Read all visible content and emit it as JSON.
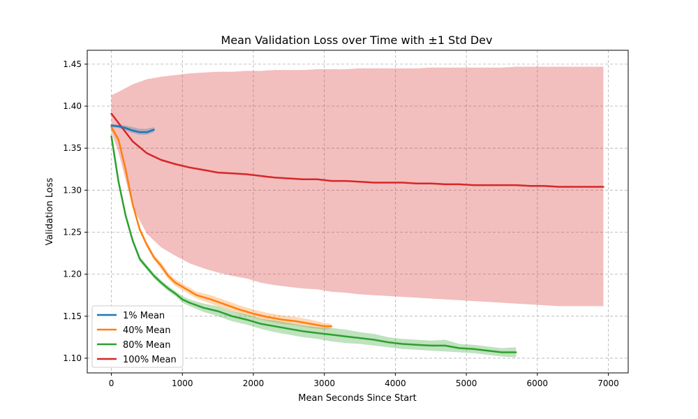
{
  "chart_data": {
    "type": "line",
    "title": "Mean Validation Loss over Time with ±1 Std Dev",
    "xlabel": "Mean Seconds Since Start",
    "ylabel": "Validation Loss",
    "xlim": [
      -340,
      7280
    ],
    "ylim": [
      1.0825,
      1.4665
    ],
    "xticks": [
      0,
      1000,
      2000,
      3000,
      4000,
      5000,
      6000,
      7000
    ],
    "yticks": [
      1.1,
      1.15,
      1.2,
      1.25,
      1.3,
      1.35,
      1.4,
      1.45
    ],
    "grid": true,
    "legend_position": "lower-left",
    "series": [
      {
        "name": "1% Mean",
        "color": "#1f77b4",
        "x": [
          0,
          100,
          200,
          300,
          400,
          500,
          600
        ],
        "y": [
          1.377,
          1.376,
          1.374,
          1.371,
          1.369,
          1.369,
          1.372
        ],
        "lower": [
          1.375,
          1.374,
          1.371,
          1.368,
          1.366,
          1.366,
          1.369
        ],
        "upper": [
          1.379,
          1.378,
          1.377,
          1.375,
          1.373,
          1.373,
          1.375
        ]
      },
      {
        "name": "40% Mean",
        "color": "#ff7f0e",
        "x": [
          0,
          100,
          200,
          300,
          400,
          500,
          600,
          700,
          800,
          900,
          1000,
          1100,
          1200,
          1400,
          1600,
          1800,
          2000,
          2200,
          2400,
          2600,
          2800,
          3000,
          3100
        ],
        "y": [
          1.375,
          1.36,
          1.325,
          1.283,
          1.253,
          1.235,
          1.22,
          1.21,
          1.198,
          1.19,
          1.185,
          1.18,
          1.175,
          1.17,
          1.164,
          1.158,
          1.153,
          1.149,
          1.146,
          1.144,
          1.141,
          1.138,
          1.138
        ],
        "lower": [
          1.372,
          1.357,
          1.322,
          1.28,
          1.25,
          1.232,
          1.217,
          1.206,
          1.194,
          1.186,
          1.181,
          1.176,
          1.171,
          1.165,
          1.159,
          1.153,
          1.148,
          1.144,
          1.141,
          1.139,
          1.136,
          1.134,
          1.135
        ],
        "upper": [
          1.378,
          1.363,
          1.328,
          1.286,
          1.256,
          1.238,
          1.223,
          1.214,
          1.202,
          1.194,
          1.189,
          1.184,
          1.179,
          1.175,
          1.169,
          1.163,
          1.158,
          1.154,
          1.151,
          1.149,
          1.146,
          1.142,
          1.141
        ]
      },
      {
        "name": "80% Mean",
        "color": "#2ca02c",
        "x": [
          0,
          100,
          200,
          300,
          400,
          500,
          600,
          700,
          800,
          900,
          1000,
          1100,
          1300,
          1500,
          1700,
          1900,
          2100,
          2300,
          2500,
          2700,
          2900,
          3100,
          3300,
          3500,
          3700,
          3900,
          4100,
          4300,
          4500,
          4700,
          4900,
          5100,
          5300,
          5500,
          5700
        ],
        "y": [
          1.364,
          1.31,
          1.27,
          1.24,
          1.218,
          1.208,
          1.198,
          1.19,
          1.183,
          1.177,
          1.17,
          1.166,
          1.16,
          1.156,
          1.15,
          1.146,
          1.141,
          1.138,
          1.135,
          1.132,
          1.13,
          1.128,
          1.126,
          1.124,
          1.122,
          1.119,
          1.117,
          1.116,
          1.115,
          1.115,
          1.112,
          1.111,
          1.109,
          1.107,
          1.107
        ],
        "lower": [
          1.361,
          1.307,
          1.267,
          1.237,
          1.215,
          1.205,
          1.195,
          1.187,
          1.18,
          1.174,
          1.166,
          1.162,
          1.155,
          1.15,
          1.144,
          1.14,
          1.135,
          1.131,
          1.128,
          1.125,
          1.123,
          1.12,
          1.118,
          1.117,
          1.115,
          1.113,
          1.111,
          1.11,
          1.109,
          1.108,
          1.107,
          1.106,
          1.104,
          1.102,
          1.101
        ],
        "upper": [
          1.367,
          1.313,
          1.273,
          1.243,
          1.221,
          1.211,
          1.201,
          1.193,
          1.186,
          1.18,
          1.174,
          1.17,
          1.165,
          1.162,
          1.156,
          1.152,
          1.147,
          1.145,
          1.142,
          1.139,
          1.137,
          1.136,
          1.134,
          1.131,
          1.129,
          1.125,
          1.123,
          1.122,
          1.121,
          1.122,
          1.117,
          1.116,
          1.114,
          1.112,
          1.113
        ]
      },
      {
        "name": "100% Mean",
        "color": "#d62728",
        "x": [
          0,
          100,
          300,
          500,
          700,
          900,
          1100,
          1300,
          1500,
          1700,
          1900,
          2100,
          2300,
          2500,
          2700,
          2900,
          3100,
          3300,
          3500,
          3700,
          3900,
          4100,
          4300,
          4500,
          4700,
          4900,
          5100,
          5300,
          5500,
          5700,
          5900,
          6100,
          6300,
          6500,
          6700,
          6930
        ],
        "y": [
          1.391,
          1.38,
          1.358,
          1.344,
          1.336,
          1.331,
          1.327,
          1.324,
          1.321,
          1.32,
          1.319,
          1.317,
          1.315,
          1.314,
          1.313,
          1.313,
          1.311,
          1.311,
          1.31,
          1.309,
          1.309,
          1.309,
          1.308,
          1.308,
          1.307,
          1.307,
          1.306,
          1.306,
          1.306,
          1.306,
          1.305,
          1.305,
          1.304,
          1.304,
          1.304,
          1.304
        ],
        "lower": [
          1.369,
          1.345,
          1.28,
          1.248,
          1.232,
          1.222,
          1.213,
          1.207,
          1.202,
          1.198,
          1.195,
          1.19,
          1.187,
          1.185,
          1.183,
          1.182,
          1.179,
          1.178,
          1.176,
          1.175,
          1.174,
          1.173,
          1.172,
          1.171,
          1.17,
          1.169,
          1.168,
          1.167,
          1.166,
          1.165,
          1.164,
          1.163,
          1.162,
          1.162,
          1.162,
          1.162
        ],
        "upper": [
          1.413,
          1.417,
          1.426,
          1.432,
          1.435,
          1.437,
          1.439,
          1.44,
          1.441,
          1.441,
          1.442,
          1.442,
          1.443,
          1.443,
          1.443,
          1.444,
          1.444,
          1.444,
          1.445,
          1.445,
          1.445,
          1.445,
          1.445,
          1.446,
          1.446,
          1.446,
          1.446,
          1.446,
          1.446,
          1.447,
          1.447,
          1.447,
          1.447,
          1.447,
          1.447,
          1.447
        ]
      }
    ]
  }
}
